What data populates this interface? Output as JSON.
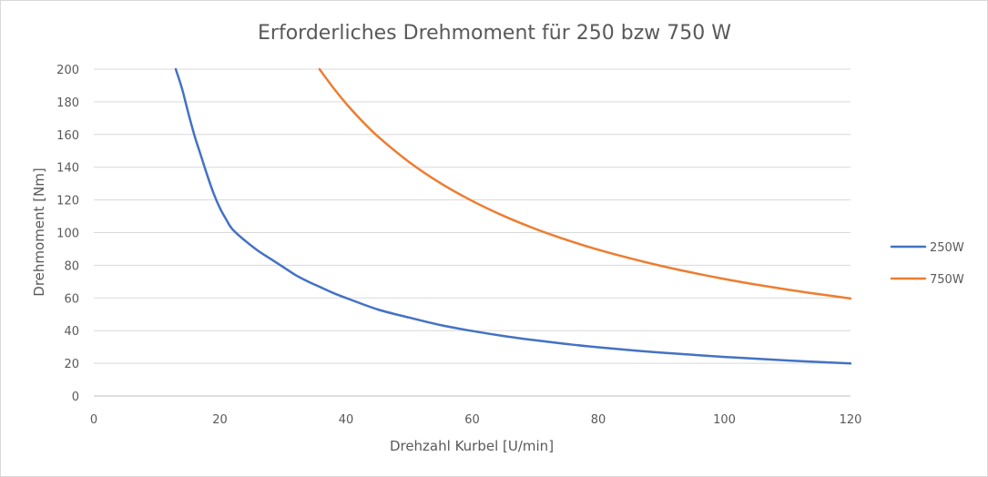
{
  "chart_data": {
    "type": "line",
    "title": "Erforderliches Drehmoment für 250 bzw 750 W",
    "xlabel": "Drehzahl Kurbel [U/min]",
    "ylabel": "Drehmoment [Nm]",
    "xlim": [
      0,
      120
    ],
    "ylim": [
      0,
      200
    ],
    "xticks": [
      0,
      20,
      40,
      60,
      80,
      100,
      120
    ],
    "yticks": [
      0,
      20,
      40,
      60,
      80,
      100,
      120,
      140,
      160,
      180,
      200
    ],
    "grid": "horizontal",
    "legend": "right",
    "series": [
      {
        "name": "250W",
        "color": "#4472c4",
        "x": [
          13,
          14,
          15,
          16,
          17,
          18,
          19,
          20,
          21,
          22,
          24,
          26,
          28,
          30,
          32,
          34,
          36,
          38,
          40,
          45,
          50,
          55,
          60,
          65,
          70,
          75,
          80,
          90,
          100,
          110,
          120
        ],
        "y": [
          200,
          188,
          173,
          159,
          147,
          135,
          124,
          115,
          108,
          102,
          95,
          89,
          84,
          79,
          74,
          70,
          66.5,
          63,
          60,
          53,
          48,
          43.4,
          39.8,
          36.7,
          34.1,
          31.8,
          29.8,
          26.5,
          23.9,
          21.7,
          19.9
        ]
      },
      {
        "name": "750W",
        "color": "#ed7d31",
        "x": [
          35.8,
          38,
          40,
          42,
          45,
          50,
          55,
          60,
          65,
          70,
          75,
          80,
          85,
          90,
          95,
          100,
          105,
          110,
          115,
          120
        ],
        "y": [
          200,
          188.5,
          179,
          170.5,
          159,
          143.2,
          130.2,
          119.4,
          110.2,
          102.3,
          95.5,
          89.5,
          84.3,
          79.6,
          75.4,
          71.6,
          68.2,
          65.1,
          62.3,
          59.7
        ]
      }
    ]
  }
}
